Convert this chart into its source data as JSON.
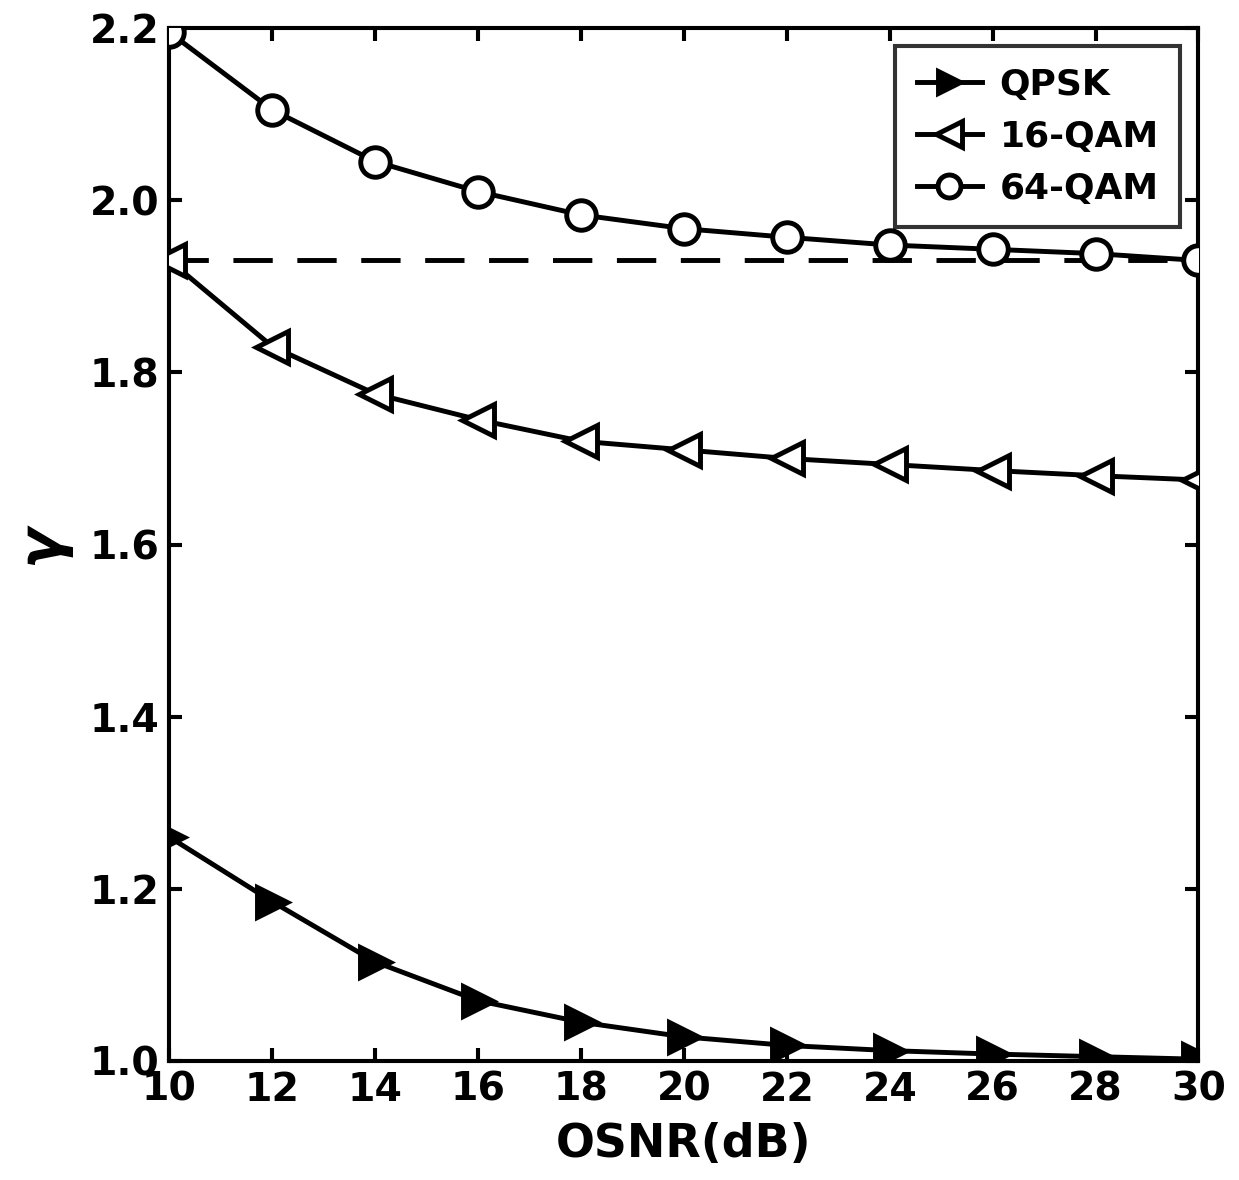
{
  "osnr": [
    10,
    12,
    14,
    16,
    18,
    20,
    22,
    24,
    26,
    28,
    30
  ],
  "qpsk": [
    1.26,
    1.185,
    1.115,
    1.07,
    1.045,
    1.028,
    1.018,
    1.012,
    1.008,
    1.005,
    1.002
  ],
  "qam16": [
    1.93,
    1.83,
    1.775,
    1.745,
    1.72,
    1.71,
    1.7,
    1.693,
    1.686,
    1.68,
    1.675
  ],
  "qam64": [
    2.195,
    2.105,
    2.045,
    2.01,
    1.983,
    1.967,
    1.957,
    1.948,
    1.943,
    1.938,
    1.93
  ],
  "dashed_y": 1.93,
  "xlabel": "OSNR(dB)",
  "ylabel": "γ",
  "xlim": [
    10,
    30
  ],
  "ylim": [
    1.0,
    2.2
  ],
  "yticks": [
    1.0,
    1.2,
    1.4,
    1.6,
    1.8,
    2.0,
    2.2
  ],
  "xticks": [
    10,
    12,
    14,
    16,
    18,
    20,
    22,
    24,
    26,
    28,
    30
  ],
  "line_color": "#000000",
  "marker_size_qpsk": 18,
  "marker_size_qam16": 20,
  "marker_size_qam64": 18,
  "linewidth": 3.0,
  "marker_edge_width": 3.0,
  "font_size_ticks": 24,
  "font_size_label": 28,
  "font_size_legend": 22,
  "legend_labels": [
    "QPSK",
    "16-QAM",
    "64-QAM"
  ]
}
